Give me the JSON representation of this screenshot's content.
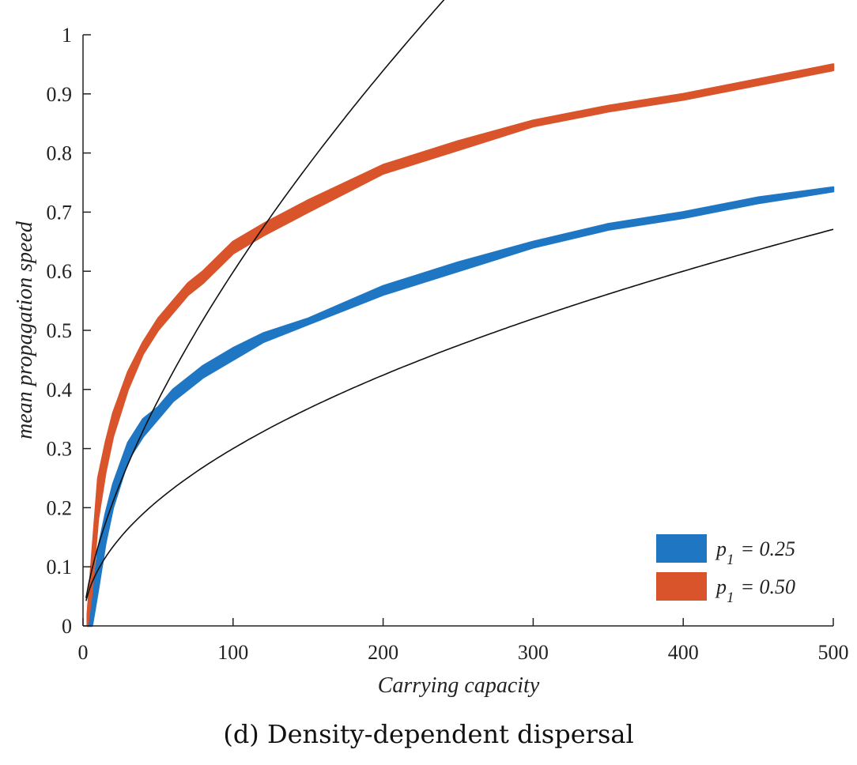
{
  "colors": {
    "series_a": "#1f77c4",
    "series_b": "#d9542a",
    "fit": "#111111",
    "axis": "#222222"
  },
  "caption": "(d) Density-dependent dispersal",
  "chart_data": {
    "type": "area",
    "title": "",
    "xlabel": "Carrying capacity",
    "ylabel": "mean propagation speed",
    "xlim": [
      0,
      500
    ],
    "ylim": [
      0,
      1
    ],
    "xticks": [
      0,
      100,
      200,
      300,
      400,
      500
    ],
    "xtick_labels": [
      "0",
      "100",
      "200",
      "300",
      "400",
      "500"
    ],
    "yticks": [
      0,
      0.1,
      0.2,
      0.3,
      0.4,
      0.5,
      0.6,
      0.7,
      0.8,
      0.9,
      1
    ],
    "ytick_labels": [
      "0",
      "0.1",
      "0.2",
      "0.3",
      "0.4",
      "0.5",
      "0.6",
      "0.7",
      "0.8",
      "0.9",
      "1"
    ],
    "grid": false,
    "legend_position": "bottom-right",
    "series": [
      {
        "name": "p1 = 0.25",
        "legend_var": "p",
        "legend_sub": "1",
        "legend_value": "= 0.25",
        "color_key": "series_a",
        "x": [
          3,
          6,
          10,
          15,
          20,
          30,
          40,
          50,
          60,
          70,
          80,
          100,
          120,
          150,
          200,
          250,
          300,
          350,
          400,
          450,
          500
        ],
        "y_low": [
          0,
          0,
          0.06,
          0.14,
          0.2,
          0.28,
          0.32,
          0.35,
          0.38,
          0.4,
          0.42,
          0.45,
          0.48,
          0.51,
          0.56,
          0.6,
          0.64,
          0.67,
          0.69,
          0.715,
          0.735
        ],
        "y_high": [
          0,
          0.04,
          0.13,
          0.19,
          0.24,
          0.31,
          0.35,
          0.37,
          0.4,
          0.42,
          0.44,
          0.47,
          0.495,
          0.52,
          0.575,
          0.615,
          0.65,
          0.68,
          0.7,
          0.725,
          0.742
        ]
      },
      {
        "name": "p1 = 0.50",
        "legend_var": "p",
        "legend_sub": "1",
        "legend_value": "= 0.50",
        "color_key": "series_b",
        "x": [
          3,
          6,
          10,
          15,
          20,
          30,
          40,
          50,
          60,
          70,
          80,
          100,
          120,
          150,
          200,
          250,
          300,
          350,
          400,
          450,
          500
        ],
        "y_low": [
          0,
          0.06,
          0.18,
          0.26,
          0.32,
          0.4,
          0.46,
          0.5,
          0.53,
          0.56,
          0.58,
          0.63,
          0.66,
          0.7,
          0.765,
          0.805,
          0.845,
          0.87,
          0.89,
          0.915,
          0.94
        ],
        "y_high": [
          0.02,
          0.12,
          0.25,
          0.31,
          0.36,
          0.43,
          0.48,
          0.52,
          0.55,
          0.58,
          0.6,
          0.65,
          0.68,
          0.72,
          0.78,
          0.82,
          0.855,
          0.88,
          0.9,
          0.925,
          0.95
        ]
      }
    ],
    "fit_curves": [
      {
        "name": "fit-upper",
        "a": 0.03,
        "b": 0.5
      },
      {
        "name": "fit-lower",
        "a": 0.03,
        "b": 0.65
      }
    ]
  }
}
